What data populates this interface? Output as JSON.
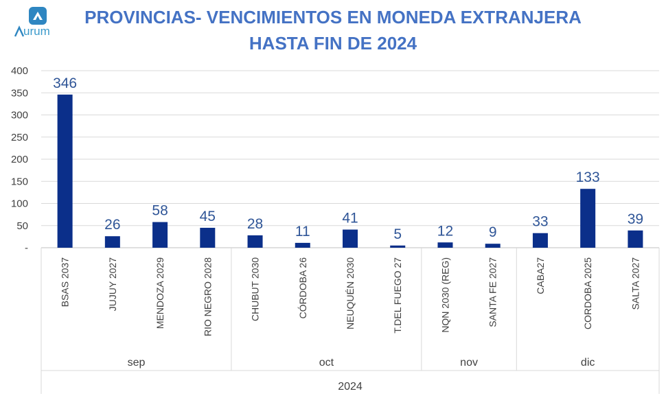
{
  "logo": {
    "text": "urum",
    "brand_color": "#3B9ACB",
    "icon": "aurum-arrow-logo-icon"
  },
  "title_lines": [
    "PROVINCIAS- VENCIMIENTOS EN MONEDA EXTRANJERA",
    "HASTA FIN DE 2024"
  ],
  "colors": {
    "bar": "#0B2F8A",
    "title": "#4472C4",
    "data_label": "#2F5597",
    "axis_text": "#404040",
    "grid": "#D9D9D9"
  },
  "chart_data": {
    "type": "bar",
    "title": "PROVINCIAS- VENCIMIENTOS EN MONEDA EXTRANJERA HASTA FIN DE 2024",
    "categories": [
      "BSAS 2037",
      "JUJUY 2027",
      "MENDOZA 2029",
      "RIO NEGRO 2028",
      "CHUBUT 2030",
      "CÓRDOBA 26",
      "NEUQUÉN 2030",
      "T.DEL FUEGO 27",
      "NQN 2030 (REG)",
      "SANTA FE 2027",
      "CABA27",
      "CORDOBA 2025",
      "SALTA 2027"
    ],
    "values": [
      346,
      26,
      58,
      45,
      28,
      11,
      41,
      5,
      12,
      9,
      33,
      133,
      39
    ],
    "groups": [
      {
        "label": "sep",
        "count": 4
      },
      {
        "label": "oct",
        "count": 4
      },
      {
        "label": "nov",
        "count": 2
      },
      {
        "label": "dic",
        "count": 3
      }
    ],
    "outer_group": "2024",
    "y_ticks": [
      "400",
      "350",
      "300",
      "250",
      "200",
      "150",
      "100",
      "50",
      "-"
    ],
    "ylim": [
      0,
      400
    ],
    "grid": true,
    "xlabel": "",
    "ylabel": ""
  }
}
